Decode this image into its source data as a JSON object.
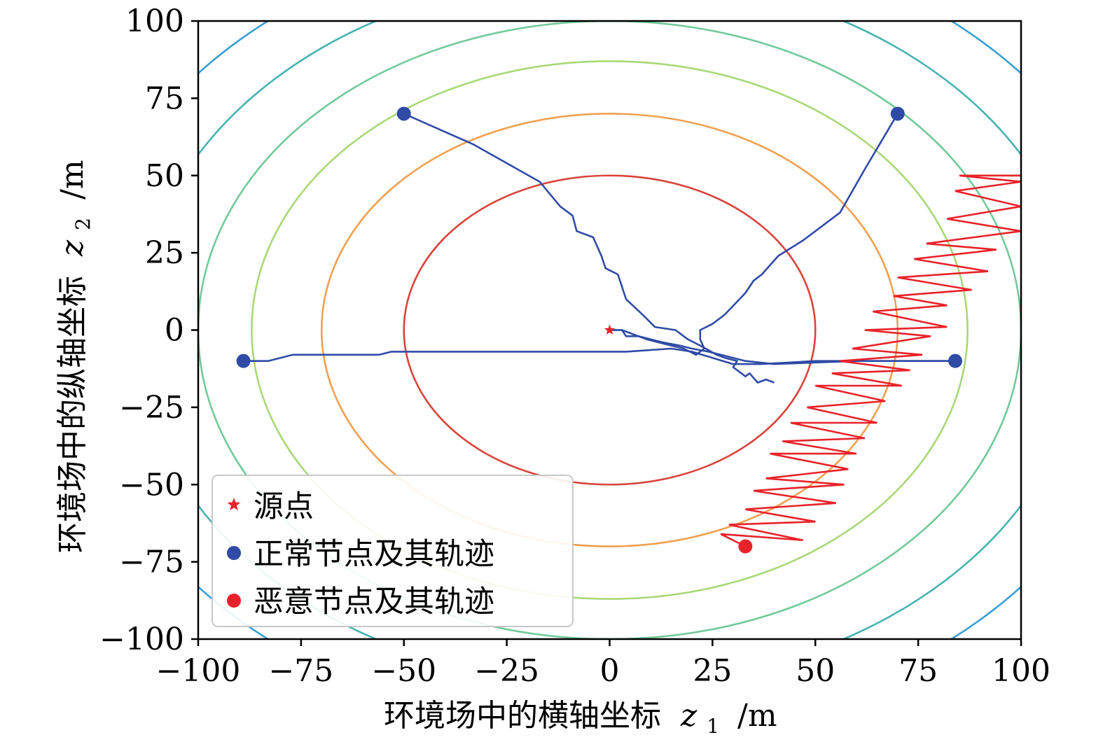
{
  "chart_data": {
    "type": "line",
    "xlabel": "环境场中的横轴坐标",
    "xlabel_var": "z",
    "xlabel_sub": "1",
    "xlabel_unit": "/m",
    "ylabel": "环境场中的纵轴坐标",
    "ylabel_var": "z",
    "ylabel_sub": "2",
    "ylabel_unit": "/m",
    "xlim": [
      -100,
      100
    ],
    "ylim": [
      -100,
      100
    ],
    "xticks": [
      -100,
      -75,
      -50,
      -25,
      0,
      25,
      50,
      75,
      100
    ],
    "yticks": [
      -100,
      -75,
      -50,
      -25,
      0,
      25,
      50,
      75,
      100
    ],
    "xtick_labels": [
      "−100",
      "−75",
      "−50",
      "−25",
      "0",
      "25",
      "50",
      "75",
      "100"
    ],
    "ytick_labels": [
      "−100",
      "−75",
      "−50",
      "−25",
      "0",
      "25",
      "50",
      "75",
      "100"
    ],
    "grid": false,
    "legend_position": "bottom-left",
    "legend": [
      {
        "label": "源点",
        "marker": "star",
        "color": "#e8222a"
      },
      {
        "label": "正常节点及其轨迹",
        "marker": "circle",
        "color": "#2f4ba6"
      },
      {
        "label": "恶意节点及其轨迹",
        "marker": "circle",
        "color": "#e8222a"
      }
    ],
    "contours": [
      {
        "rx": 50,
        "ry": 50,
        "color": "#d8443c"
      },
      {
        "rx": 70,
        "ry": 70,
        "color": "#f0a050"
      },
      {
        "rx": 87,
        "ry": 87,
        "color": "#a8d878"
      },
      {
        "rx": 100,
        "ry": 100,
        "color": "#72c99a"
      },
      {
        "rx": 115,
        "ry": 115,
        "color": "#46b2b0"
      },
      {
        "rx": 130,
        "ry": 130,
        "color": "#3a9fd2"
      },
      {
        "rx": 142,
        "ry": 142,
        "color": "#3d5aa6"
      }
    ],
    "source": {
      "x": 0,
      "y": 0,
      "color": "#e8222a"
    },
    "normal_color": "#2f4ba6",
    "malicious_color": "#e8222a",
    "normal_nodes": [
      {
        "start": [
          -50,
          70
        ],
        "path": [
          [
            -50,
            70
          ],
          [
            -33,
            60
          ],
          [
            -17,
            48
          ],
          [
            -12,
            40
          ],
          [
            -9,
            37
          ],
          [
            -8,
            32
          ],
          [
            -4,
            30
          ],
          [
            -2,
            24
          ],
          [
            -1,
            20
          ],
          [
            2,
            18
          ],
          [
            4,
            10
          ],
          [
            8,
            5
          ],
          [
            11,
            1
          ],
          [
            16,
            0
          ],
          [
            19,
            -3
          ],
          [
            22,
            -5
          ],
          [
            26,
            -8
          ],
          [
            28,
            -9
          ],
          [
            31,
            -10
          ],
          [
            30,
            -12
          ],
          [
            33,
            -15
          ],
          [
            34,
            -14
          ],
          [
            36,
            -17
          ],
          [
            38,
            -16
          ],
          [
            40,
            -17
          ]
        ]
      },
      {
        "start": [
          70,
          70
        ],
        "path": [
          [
            70,
            70
          ],
          [
            62,
            52
          ],
          [
            56,
            38
          ],
          [
            47,
            29
          ],
          [
            41,
            24
          ],
          [
            37,
            18
          ],
          [
            35,
            16
          ],
          [
            33,
            12
          ],
          [
            28,
            5
          ],
          [
            25,
            2
          ],
          [
            22,
            0
          ],
          [
            22,
            -3
          ],
          [
            23,
            -6
          ],
          [
            21,
            -8
          ],
          [
            18,
            -6
          ],
          [
            15,
            -5
          ],
          [
            12,
            -4
          ],
          [
            9,
            -3
          ],
          [
            7,
            -2
          ],
          [
            4,
            -2
          ],
          [
            3,
            0
          ],
          [
            1,
            0
          ],
          [
            0,
            0
          ]
        ]
      },
      {
        "start": [
          -89,
          -10
        ],
        "path": [
          [
            -89,
            -10
          ],
          [
            -83,
            -10
          ],
          [
            -77,
            -8
          ],
          [
            -56,
            -8
          ],
          [
            -53,
            -7
          ],
          [
            -30,
            -7
          ],
          [
            4,
            -7
          ],
          [
            15,
            -6
          ],
          [
            20,
            -7
          ],
          [
            25,
            -9
          ],
          [
            30,
            -11
          ],
          [
            37,
            -11
          ],
          [
            50,
            -10
          ],
          [
            70,
            -10
          ],
          [
            84,
            -10
          ]
        ]
      },
      {
        "start": [
          84,
          -10
        ],
        "path": [
          [
            84,
            -10
          ],
          [
            75,
            -10
          ],
          [
            60,
            -10
          ],
          [
            40,
            -11
          ],
          [
            33,
            -10
          ],
          [
            30,
            -9
          ],
          [
            27,
            -8
          ],
          [
            24,
            -7
          ],
          [
            20,
            -6
          ],
          [
            17,
            -5
          ],
          [
            13,
            -4
          ],
          [
            10,
            -3
          ],
          [
            7,
            -2
          ],
          [
            5,
            -1
          ],
          [
            3,
            0
          ],
          [
            1,
            0
          ],
          [
            0,
            0
          ]
        ]
      }
    ],
    "malicious_nodes": [
      {
        "start": [
          33,
          -70
        ],
        "path": [
          [
            33,
            -70
          ],
          [
            27,
            -66
          ],
          [
            47,
            -68
          ],
          [
            29,
            -63
          ],
          [
            50,
            -62
          ],
          [
            33,
            -58
          ],
          [
            55,
            -56
          ],
          [
            35,
            -52
          ],
          [
            57,
            -50
          ],
          [
            38,
            -48
          ],
          [
            58,
            -45
          ],
          [
            39,
            -40
          ],
          [
            60,
            -40
          ],
          [
            42,
            -36
          ],
          [
            62,
            -35
          ],
          [
            44,
            -30
          ],
          [
            65,
            -30
          ],
          [
            48,
            -25
          ],
          [
            67,
            -23
          ],
          [
            50,
            -18
          ],
          [
            71,
            -18
          ],
          [
            54,
            -14
          ],
          [
            73,
            -13
          ],
          [
            56,
            -10
          ],
          [
            76,
            -8
          ],
          [
            59,
            -6
          ],
          [
            78,
            -2
          ],
          [
            62,
            0
          ],
          [
            82,
            1
          ],
          [
            64,
            6
          ],
          [
            82,
            8
          ],
          [
            69,
            11
          ],
          [
            88,
            13
          ],
          [
            70,
            17
          ],
          [
            92,
            19
          ],
          [
            74,
            23
          ],
          [
            94,
            26
          ],
          [
            77,
            28
          ],
          [
            100,
            32
          ],
          [
            82,
            36
          ],
          [
            100,
            40
          ],
          [
            84,
            45
          ],
          [
            100,
            48
          ],
          [
            85,
            50
          ],
          [
            100,
            50
          ]
        ]
      }
    ]
  }
}
